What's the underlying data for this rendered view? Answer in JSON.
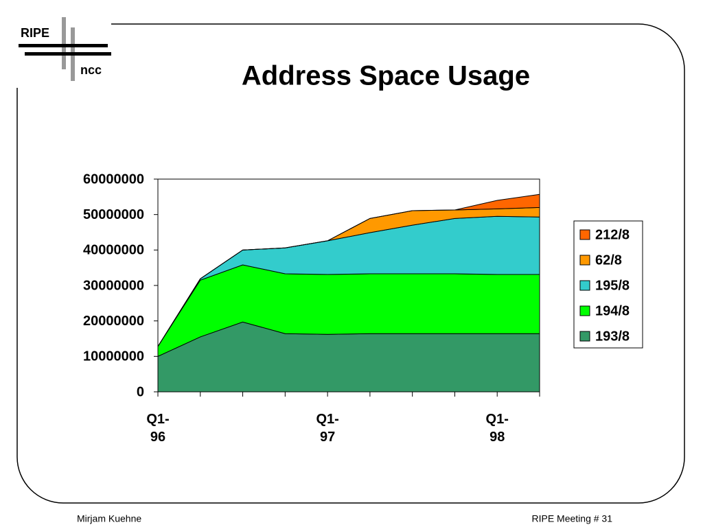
{
  "logo": {
    "top": "RIPE",
    "bottom": "ncc"
  },
  "footer": {
    "left": "Mirjam Kuehne",
    "right": "RIPE Meeting # 31"
  },
  "chart_data": {
    "type": "stacked-area",
    "title": "Address Space Usage",
    "categories": [
      "Q1-96",
      null,
      null,
      null,
      "Q1-97",
      null,
      null,
      null,
      "Q1-98",
      null
    ],
    "series": [
      {
        "name": "193/8",
        "color": "#339966",
        "values": [
          10000000,
          15500000,
          19700000,
          16400000,
          16200000,
          16400000,
          16400000,
          16400000,
          16400000,
          16400000
        ]
      },
      {
        "name": "194/8",
        "color": "#00ff00",
        "values": [
          2800000,
          16000000,
          16100000,
          16900000,
          16900000,
          16900000,
          16900000,
          16900000,
          16700000,
          16700000
        ]
      },
      {
        "name": "195/8",
        "color": "#33cccc",
        "values": [
          0,
          400000,
          4200000,
          7300000,
          9500000,
          11600000,
          13700000,
          15600000,
          16400000,
          16200000
        ]
      },
      {
        "name": "62/8",
        "color": "#ff9900",
        "values": [
          0,
          0,
          0,
          0,
          0,
          4000000,
          4100000,
          2400000,
          2100000,
          2700000
        ]
      },
      {
        "name": "212/8",
        "color": "#ff6600",
        "values": [
          0,
          0,
          0,
          0,
          0,
          0,
          0,
          0,
          2400000,
          3700000
        ]
      }
    ],
    "ylim": [
      0,
      60000000
    ],
    "yticks": [
      0,
      10000000,
      20000000,
      30000000,
      40000000,
      50000000,
      60000000
    ],
    "legend": "right"
  }
}
